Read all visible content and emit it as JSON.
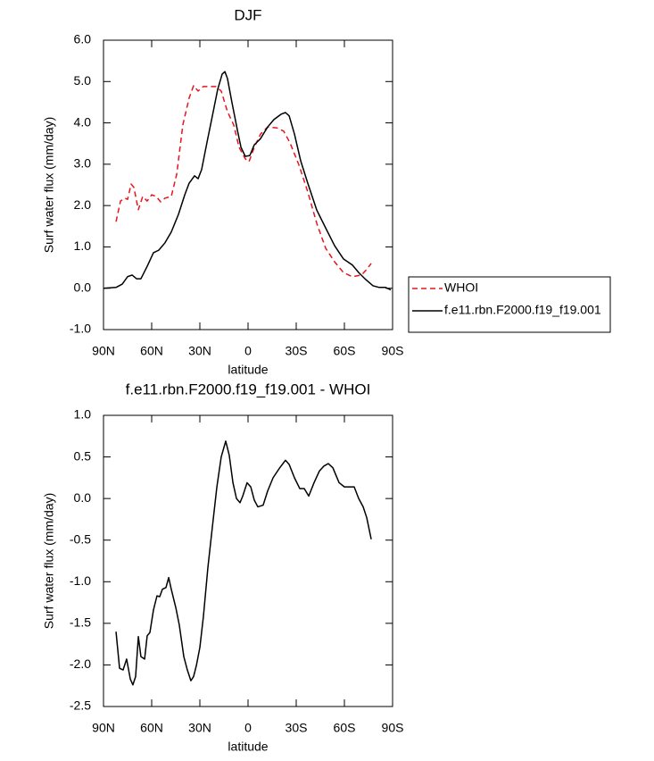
{
  "chart_data": [
    {
      "type": "line",
      "title": "DJF",
      "x_label": "latitude",
      "y_label": "Surf water flux (mm/day)",
      "xlim": [
        90,
        -90
      ],
      "xticks": [
        {
          "value": 90,
          "label": "90N"
        },
        {
          "value": 60,
          "label": "60N"
        },
        {
          "value": 30,
          "label": "30N"
        },
        0,
        {
          "value": -30,
          "label": "30S"
        },
        {
          "value": -60,
          "label": "60S"
        },
        {
          "value": -90,
          "label": "90S"
        }
      ],
      "ylim": [
        -1,
        6
      ],
      "yticks": [
        {
          "value": 6,
          "label": "6.0"
        },
        {
          "value": 5,
          "label": "5.0"
        },
        {
          "value": 4,
          "label": "4.0"
        },
        {
          "value": 3,
          "label": "3.0"
        },
        {
          "value": 2,
          "label": "2.0"
        },
        {
          "value": 1,
          "label": "1.0"
        },
        {
          "value": 0,
          "label": "0.0"
        },
        {
          "value": -1,
          "label": "-1.0"
        }
      ],
      "legend": "outside-right",
      "series": [
        {
          "name": "WHOI",
          "color": "#e8141e",
          "dashed": true,
          "x": [
            82.2,
            79.4,
            76.7,
            75,
            72.8,
            71.1,
            68.3,
            65.6,
            62.8,
            60,
            57.2,
            54.4,
            51.7,
            47.8,
            44.4,
            40.6,
            36.7,
            33.9,
            31.1,
            27.8,
            23.9,
            20,
            16.7,
            12.8,
            8.9,
            5.6,
            1.7,
            -0.6,
            -3.9,
            -7.8,
            -12.2,
            -17.8,
            -22.2,
            -26.1,
            -31.7,
            -37.2,
            -42.8,
            -48.3,
            -53.9,
            -59.4,
            -65,
            -70.6,
            -73.3,
            -76.7
          ],
          "values": [
            1.61,
            2.11,
            2.18,
            2.15,
            2.52,
            2.44,
            1.9,
            2.22,
            2.11,
            2.26,
            2.22,
            2.09,
            2.18,
            2.22,
            2.76,
            3.95,
            4.6,
            4.9,
            4.77,
            4.88,
            4.88,
            4.88,
            4.77,
            4.27,
            3.95,
            3.41,
            3.13,
            3.06,
            3.41,
            3.73,
            3.9,
            3.88,
            3.8,
            3.52,
            2.98,
            2.33,
            1.57,
            0.97,
            0.64,
            0.38,
            0.28,
            0.32,
            0.43,
            0.6
          ]
        },
        {
          "name": "f.e11.rbn.F2000.f19_f19.001",
          "color": "#000000",
          "dashed": false,
          "x": [
            90,
            82.2,
            78.3,
            75,
            72.2,
            69.4,
            66.7,
            62.8,
            58.9,
            55.6,
            51.7,
            47.8,
            43.3,
            39.4,
            36.7,
            33.3,
            31.1,
            28.9,
            25.6,
            22.2,
            18.9,
            16.1,
            14.4,
            12.8,
            10,
            6.7,
            4.4,
            1.7,
            -1.1,
            -3.9,
            -7.8,
            -12.2,
            -16.1,
            -20.6,
            -23.3,
            -25.6,
            -28.9,
            -32.8,
            -37.2,
            -42.8,
            -48.3,
            -53.9,
            -59.4,
            -65,
            -68.9,
            -73.3,
            -77.8,
            -81.7,
            -85.6,
            -88.9
          ],
          "values": [
            0,
            0.02,
            0.1,
            0.28,
            0.32,
            0.23,
            0.23,
            0.53,
            0.86,
            0.92,
            1.1,
            1.36,
            1.79,
            2.26,
            2.54,
            2.72,
            2.65,
            2.87,
            3.52,
            4.17,
            4.81,
            5.18,
            5.24,
            5.07,
            4.49,
            3.84,
            3.41,
            3.19,
            3.21,
            3.47,
            3.62,
            3.9,
            4.08,
            4.21,
            4.25,
            4.17,
            3.73,
            3.08,
            2.54,
            1.89,
            1.46,
            1.03,
            0.71,
            0.56,
            0.38,
            0.21,
            0.06,
            0.02,
            0.02,
            -0.04
          ]
        }
      ]
    },
    {
      "type": "line",
      "title": "f.e11.rbn.F2000.f19_f19.001 - WHOI",
      "x_label": "latitude",
      "y_label": "Surf water flux (mm/day)",
      "xlim": [
        90,
        -90
      ],
      "xticks": [
        {
          "value": 90,
          "label": "90N"
        },
        {
          "value": 60,
          "label": "60N"
        },
        {
          "value": 30,
          "label": "30N"
        },
        0,
        {
          "value": -30,
          "label": "30S"
        },
        {
          "value": -60,
          "label": "60S"
        },
        {
          "value": -90,
          "label": "90S"
        }
      ],
      "ylim": [
        -2.5,
        1
      ],
      "yticks": [
        {
          "value": 1,
          "label": "1.0"
        },
        0.5,
        {
          "value": 0,
          "label": "0.0"
        },
        -0.5,
        {
          "value": -1,
          "label": "-1.0"
        },
        -1.5,
        {
          "value": -2,
          "label": "-2.0"
        },
        -2.5
      ],
      "series": [
        {
          "color": "#000000",
          "dashed": false,
          "x": [
            82.2,
            80,
            77.8,
            75.6,
            73.3,
            71.7,
            70,
            68.3,
            66.7,
            64.4,
            62.8,
            61.1,
            58.9,
            56.7,
            55,
            53.3,
            51.1,
            49.4,
            47.8,
            45,
            42.8,
            40,
            37.8,
            35.6,
            33.9,
            32.2,
            30,
            27.8,
            25,
            22.2,
            19.4,
            16.7,
            13.9,
            11.7,
            9.4,
            7.2,
            5,
            3.3,
            0.6,
            -1.7,
            -3.9,
            -6.1,
            -9.4,
            -12.2,
            -15.6,
            -19.4,
            -23.3,
            -25.6,
            -28.9,
            -32.2,
            -35,
            -37.8,
            -41.1,
            -44.4,
            -47.2,
            -50,
            -52.8,
            -56.7,
            -60,
            -63.9,
            -66.1,
            -68.9,
            -71.7,
            -73.9,
            -76.7
          ],
          "values": [
            -1.6,
            -2.04,
            -2.06,
            -1.93,
            -2.17,
            -2.24,
            -2.14,
            -1.66,
            -1.9,
            -1.93,
            -1.65,
            -1.61,
            -1.34,
            -1.17,
            -1.18,
            -1.09,
            -1.07,
            -0.95,
            -1.09,
            -1.31,
            -1.52,
            -1.9,
            -2.06,
            -2.19,
            -2.14,
            -2.01,
            -1.79,
            -1.42,
            -0.83,
            -0.34,
            0.14,
            0.5,
            0.69,
            0.52,
            0.19,
            0,
            -0.05,
            0.03,
            0.19,
            0.14,
            -0.02,
            -0.1,
            -0.08,
            0.09,
            0.25,
            0.36,
            0.46,
            0.41,
            0.25,
            0.12,
            0.12,
            0.03,
            0.19,
            0.33,
            0.39,
            0.42,
            0.37,
            0.19,
            0.14,
            0.14,
            0.14,
            0,
            -0.1,
            -0.23,
            -0.49
          ]
        }
      ]
    }
  ]
}
